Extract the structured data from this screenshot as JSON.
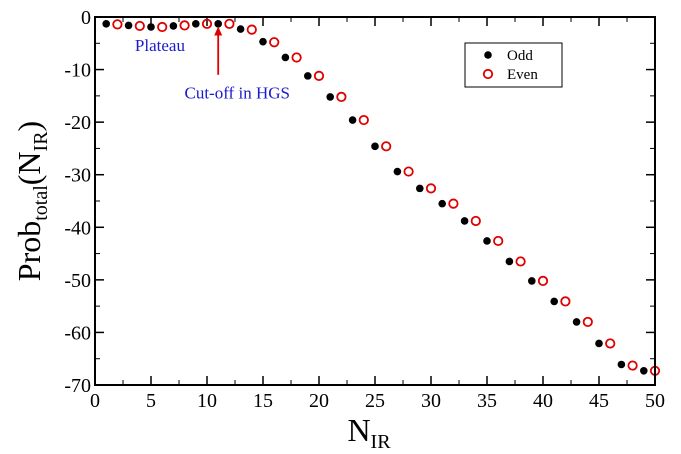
{
  "chart_data": {
    "type": "scatter",
    "xlabel": {
      "main": "N",
      "sub": "IR"
    },
    "ylabel": {
      "main": "Prob",
      "sub": "total",
      "tail": "(N",
      "sub2": "IR",
      "close": ")"
    },
    "xlim": [
      0,
      50
    ],
    "ylim": [
      -70,
      0
    ],
    "xticks": [
      0,
      5,
      10,
      15,
      20,
      25,
      30,
      35,
      40,
      45,
      50
    ],
    "yticks": [
      0,
      -10,
      -20,
      -30,
      -40,
      -50,
      -60,
      -70
    ],
    "grid": false,
    "legend_position": "top-right",
    "series": [
      {
        "name": "Odd",
        "marker": "filled-circle",
        "color": "#000000",
        "x": [
          1,
          3,
          5,
          7,
          9,
          11,
          13,
          15,
          17,
          19,
          21,
          23,
          25,
          27,
          29,
          31,
          33,
          35,
          37,
          39,
          41,
          43,
          45,
          47,
          49
        ],
        "y": [
          -1.3,
          -1.6,
          -1.9,
          -1.7,
          -1.3,
          -1.3,
          -2.3,
          -4.7,
          -7.7,
          -11.2,
          -15.2,
          -19.6,
          -24.6,
          -29.4,
          -32.6,
          -35.5,
          -38.8,
          -42.6,
          -46.5,
          -50.2,
          -54.1,
          -58,
          -62.1,
          -66.1,
          -67.3
        ]
      },
      {
        "name": "Even",
        "marker": "open-circle",
        "color": "#e00000",
        "x": [
          2,
          4,
          6,
          8,
          10,
          12,
          14,
          16,
          18,
          20,
          22,
          24,
          26,
          28,
          30,
          32,
          34,
          36,
          38,
          40,
          42,
          44,
          46,
          48,
          50
        ],
        "y": [
          -1.4,
          -1.7,
          -1.9,
          -1.6,
          -1.3,
          -1.3,
          -2.4,
          -4.8,
          -7.7,
          -11.2,
          -15.2,
          -19.6,
          -24.6,
          -29.4,
          -32.6,
          -35.5,
          -38.8,
          -42.6,
          -46.5,
          -50.2,
          -54.1,
          -58,
          -62.1,
          -66.3,
          -67.3
        ]
      }
    ],
    "annotations": [
      {
        "text": "Plateau",
        "color": "#1a1acc",
        "x": 5.8,
        "y": -6.5
      },
      {
        "text": "Cut-off in HGS",
        "color": "#1a1acc",
        "x": 12.7,
        "y": -15.5,
        "arrow_from_y": -11,
        "arrow_to_y": -1.8,
        "arrow_x": 11,
        "arrow_color": "#e00000"
      }
    ]
  }
}
